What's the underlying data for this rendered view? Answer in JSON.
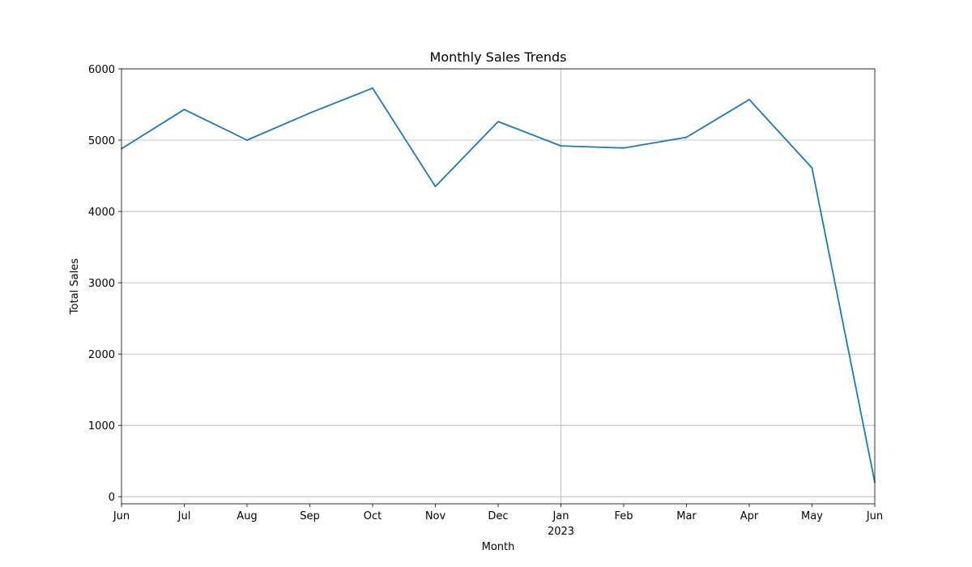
{
  "chart_data": {
    "type": "line",
    "title": "Monthly Sales Trends",
    "xlabel": "Month",
    "ylabel": "Total Sales",
    "x": [
      "2022-06",
      "2022-07",
      "2022-08",
      "2022-09",
      "2022-10",
      "2022-11",
      "2022-12",
      "2023-01",
      "2023-02",
      "2023-03",
      "2023-04",
      "2023-05",
      "2023-06"
    ],
    "x_tick_labels": [
      "Jun",
      "Jul",
      "Aug",
      "Sep",
      "Oct",
      "Nov",
      "Dec",
      "Jan",
      "Feb",
      "Mar",
      "Apr",
      "May",
      "Jun"
    ],
    "x_tick_year_labels": {
      "7": "2023"
    },
    "series": [
      {
        "values": [
          4880,
          5430,
          5000,
          5380,
          5730,
          4350,
          5260,
          4920,
          4890,
          5040,
          5570,
          4610,
          200
        ],
        "color": "#1f77b4"
      }
    ],
    "ylim": [
      -100,
      6000
    ],
    "y_ticks": [
      0,
      1000,
      2000,
      3000,
      4000,
      5000,
      6000
    ],
    "y_tick_labels": [
      "0",
      "1000",
      "2000",
      "3000",
      "4000",
      "5000",
      "6000"
    ],
    "grid": "on",
    "legend": "none"
  }
}
